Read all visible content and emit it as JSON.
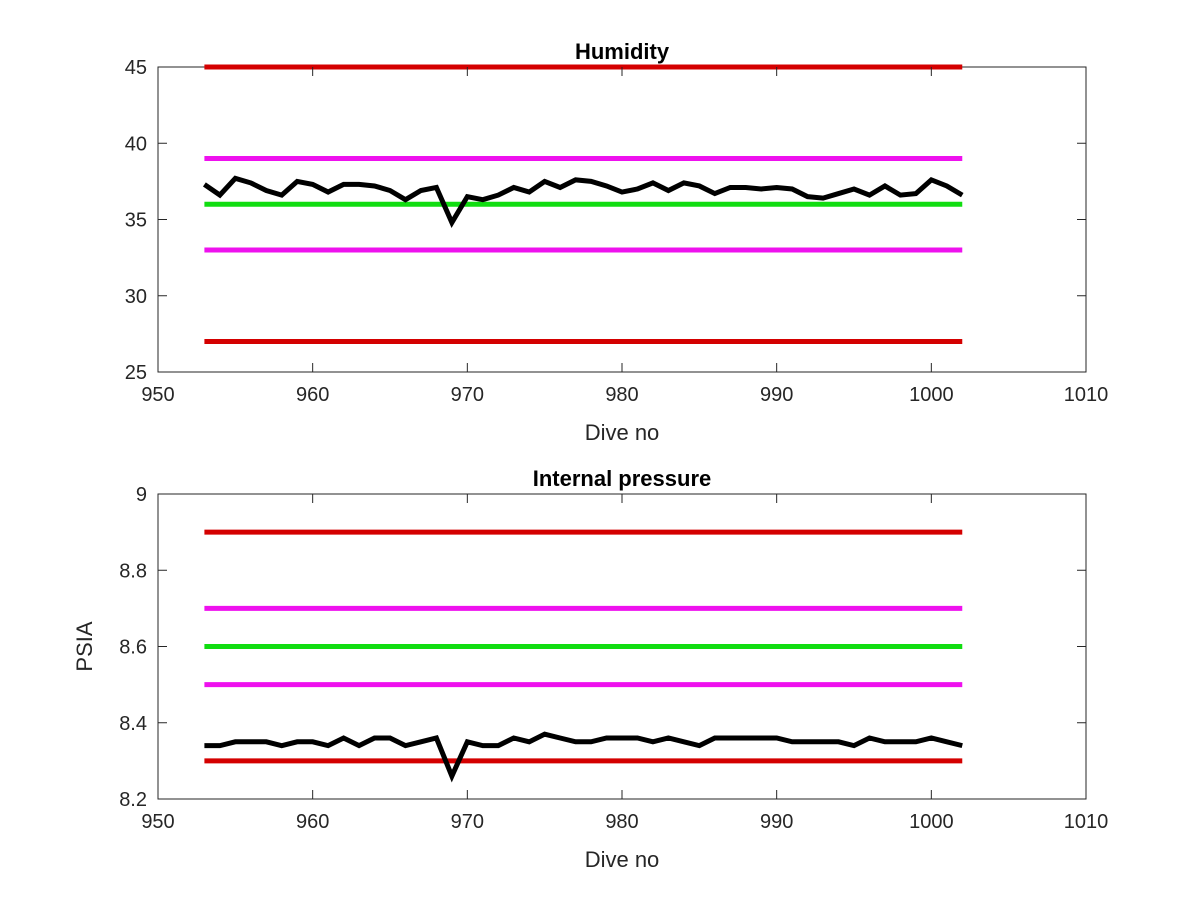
{
  "chart_data": [
    {
      "type": "line",
      "title": "Humidity",
      "xlabel": "Dive no",
      "ylabel": "",
      "xlim": [
        950,
        1010
      ],
      "ylim": [
        25,
        45
      ],
      "xticks": [
        "950",
        "960",
        "970",
        "980",
        "990",
        "1000",
        "1010"
      ],
      "yticks": [
        "25",
        "30",
        "35",
        "40",
        "45"
      ],
      "grid": false,
      "reference_lines": [
        {
          "y": 45,
          "x_range": [
            953,
            1002
          ],
          "color": "#d40000"
        },
        {
          "y": 39,
          "x_range": [
            953,
            1002
          ],
          "color": "#ee11ee"
        },
        {
          "y": 36,
          "x_range": [
            953,
            1002
          ],
          "color": "#11dd11"
        },
        {
          "y": 33,
          "x_range": [
            953,
            1002
          ],
          "color": "#ee11ee"
        },
        {
          "y": 27,
          "x_range": [
            953,
            1002
          ],
          "color": "#d40000"
        }
      ],
      "series": [
        {
          "color": "#000000",
          "x": [
            953,
            954,
            955,
            956,
            957,
            958,
            959,
            960,
            961,
            962,
            963,
            964,
            965,
            966,
            967,
            968,
            969,
            970,
            971,
            972,
            973,
            974,
            975,
            976,
            977,
            978,
            979,
            980,
            981,
            982,
            983,
            984,
            985,
            986,
            987,
            988,
            989,
            990,
            991,
            992,
            993,
            994,
            995,
            996,
            997,
            998,
            999,
            1000,
            1001,
            1002
          ],
          "values": [
            37.3,
            36.6,
            37.7,
            37.4,
            36.9,
            36.6,
            37.5,
            37.3,
            36.8,
            37.3,
            37.3,
            37.2,
            36.9,
            36.3,
            36.9,
            37.1,
            34.8,
            36.5,
            36.3,
            36.6,
            37.1,
            36.8,
            37.5,
            37.1,
            37.6,
            37.5,
            37.2,
            36.8,
            37.0,
            37.4,
            36.9,
            37.4,
            37.2,
            36.7,
            37.1,
            37.1,
            37.0,
            37.1,
            37.0,
            36.5,
            36.4,
            36.7,
            37.0,
            36.6,
            37.2,
            36.6,
            36.7,
            37.6,
            37.2,
            36.6
          ]
        }
      ]
    },
    {
      "type": "line",
      "title": "Internal pressure",
      "xlabel": "Dive no",
      "ylabel": "PSIA",
      "xlim": [
        950,
        1010
      ],
      "ylim": [
        8.2,
        9
      ],
      "xticks": [
        "950",
        "960",
        "970",
        "980",
        "990",
        "1000",
        "1010"
      ],
      "yticks": [
        "8.2",
        "8.4",
        "8.6",
        "8.8",
        "9"
      ],
      "grid": false,
      "reference_lines": [
        {
          "y": 8.9,
          "x_range": [
            953,
            1002
          ],
          "color": "#d40000"
        },
        {
          "y": 8.7,
          "x_range": [
            953,
            1002
          ],
          "color": "#ee11ee"
        },
        {
          "y": 8.6,
          "x_range": [
            953,
            1002
          ],
          "color": "#11dd11"
        },
        {
          "y": 8.5,
          "x_range": [
            953,
            1002
          ],
          "color": "#ee11ee"
        },
        {
          "y": 8.3,
          "x_range": [
            953,
            1002
          ],
          "color": "#d40000"
        }
      ],
      "series": [
        {
          "color": "#000000",
          "x": [
            953,
            954,
            955,
            956,
            957,
            958,
            959,
            960,
            961,
            962,
            963,
            964,
            965,
            966,
            967,
            968,
            969,
            970,
            971,
            972,
            973,
            974,
            975,
            976,
            977,
            978,
            979,
            980,
            981,
            982,
            983,
            984,
            985,
            986,
            987,
            988,
            989,
            990,
            991,
            992,
            993,
            994,
            995,
            996,
            997,
            998,
            999,
            1000,
            1001,
            1002
          ],
          "values": [
            8.34,
            8.34,
            8.35,
            8.35,
            8.35,
            8.34,
            8.35,
            8.35,
            8.34,
            8.36,
            8.34,
            8.36,
            8.36,
            8.34,
            8.35,
            8.36,
            8.26,
            8.35,
            8.34,
            8.34,
            8.36,
            8.35,
            8.37,
            8.36,
            8.35,
            8.35,
            8.36,
            8.36,
            8.36,
            8.35,
            8.36,
            8.35,
            8.34,
            8.36,
            8.36,
            8.36,
            8.36,
            8.36,
            8.35,
            8.35,
            8.35,
            8.35,
            8.34,
            8.36,
            8.35,
            8.35,
            8.35,
            8.36,
            8.35,
            8.34
          ]
        }
      ]
    }
  ]
}
